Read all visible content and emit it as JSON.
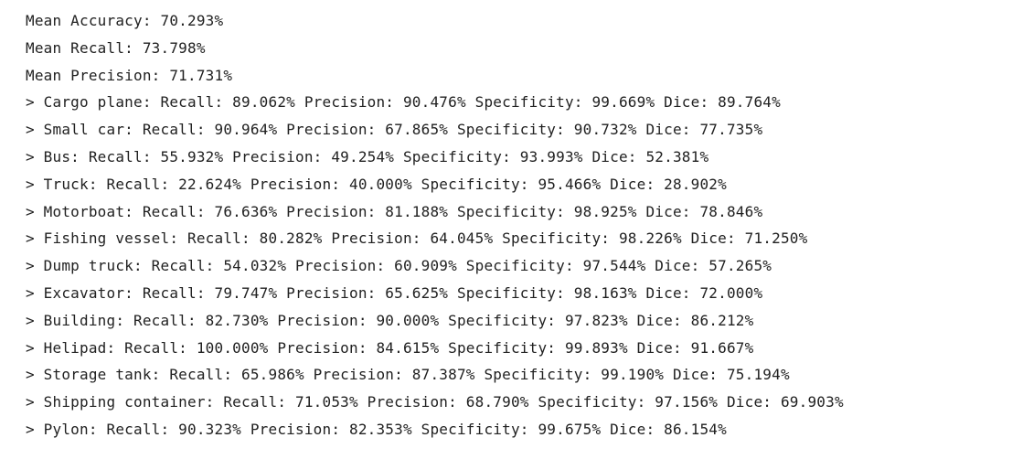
{
  "output": {
    "lines": [
      "Mean Accuracy: 70.293%",
      "Mean Recall: 73.798%",
      "Mean Precision: 71.731%",
      "> Cargo plane: Recall: 89.062% Precision: 90.476% Specificity: 99.669% Dice: 89.764%",
      "> Small car: Recall: 90.964% Precision: 67.865% Specificity: 90.732% Dice: 77.735%",
      "> Bus: Recall: 55.932% Precision: 49.254% Specificity: 93.993% Dice: 52.381%",
      "> Truck: Recall: 22.624% Precision: 40.000% Specificity: 95.466% Dice: 28.902%",
      "> Motorboat: Recall: 76.636% Precision: 81.188% Specificity: 98.925% Dice: 78.846%",
      "> Fishing vessel: Recall: 80.282% Precision: 64.045% Specificity: 98.226% Dice: 71.250%",
      "> Dump truck: Recall: 54.032% Precision: 60.909% Specificity: 97.544% Dice: 57.265%",
      "> Excavator: Recall: 79.747% Precision: 65.625% Specificity: 98.163% Dice: 72.000%",
      "> Building: Recall: 82.730% Precision: 90.000% Specificity: 97.823% Dice: 86.212%",
      "> Helipad: Recall: 100.000% Precision: 84.615% Specificity: 99.893% Dice: 91.667%",
      "> Storage tank: Recall: 65.986% Precision: 87.387% Specificity: 99.190% Dice: 75.194%",
      "> Shipping container: Recall: 71.053% Precision: 68.790% Specificity: 97.156% Dice: 69.903%",
      "> Pylon: Recall: 90.323% Precision: 82.353% Specificity: 99.675% Dice: 86.154%"
    ]
  },
  "colors": {
    "text": "#212121",
    "background": "#ffffff"
  }
}
